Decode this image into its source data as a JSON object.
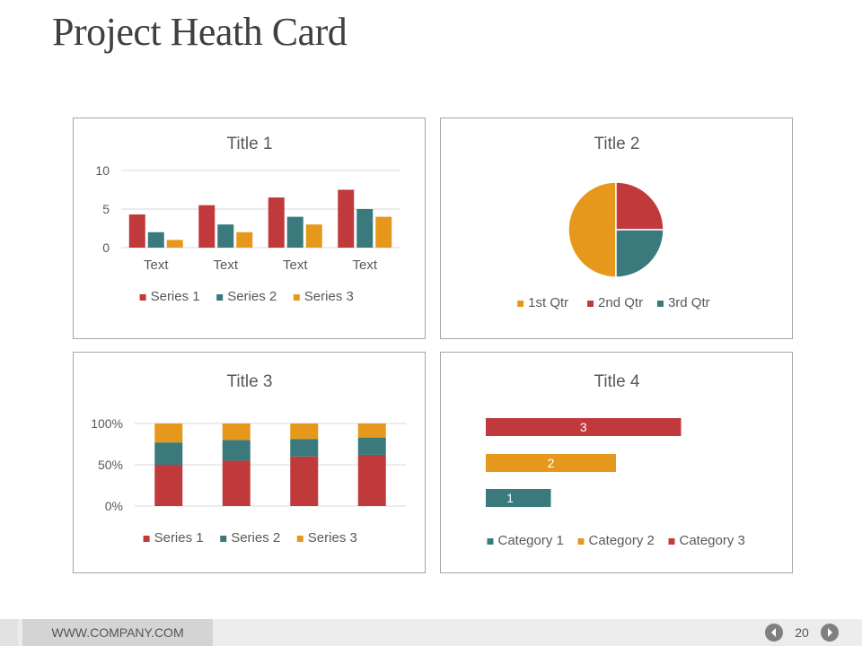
{
  "slide": {
    "title": "Project Heath Card",
    "footer_url": "WWW.COMPANY.COM",
    "page_number": "20"
  },
  "colors": {
    "red": "#C0393B",
    "teal": "#3A7A7D",
    "orange": "#E6981D",
    "grid": "#d9d9d9",
    "text": "#595959"
  },
  "icons": {
    "prev": "chevron-left-circle-icon",
    "next": "chevron-right-circle-icon"
  },
  "chart_data": [
    {
      "type": "bar",
      "title": "Title 1",
      "categories": [
        "Text",
        "Text",
        "Text",
        "Text"
      ],
      "series": [
        {
          "name": "Series 1",
          "values": [
            4.3,
            5.5,
            6.5,
            7.5
          ]
        },
        {
          "name": "Series 2",
          "values": [
            2,
            3,
            4,
            5
          ]
        },
        {
          "name": "Series 3",
          "values": [
            1,
            2,
            3,
            4
          ]
        }
      ],
      "ylim": [
        0,
        10
      ],
      "yticks": [
        "0",
        "5",
        "10"
      ],
      "grid": true,
      "legend": "bottom"
    },
    {
      "type": "pie",
      "title": "Title 2",
      "labels": [
        "1st Qtr",
        "2nd Qtr",
        "3rd Qtr"
      ],
      "values": [
        50,
        25,
        25
      ],
      "legend": "bottom"
    },
    {
      "type": "bar",
      "stacked": "percent",
      "title": "Title 3",
      "categories": [
        "",
        "",
        "",
        ""
      ],
      "series": [
        {
          "name": "Series 1",
          "values": [
            50,
            55,
            60,
            62
          ]
        },
        {
          "name": "Series 2",
          "values": [
            27,
            25,
            21,
            21
          ]
        },
        {
          "name": "Series 3",
          "values": [
            23,
            20,
            19,
            17
          ]
        }
      ],
      "ylim": [
        0,
        100
      ],
      "yticks": [
        "0%",
        "50%",
        "100%"
      ],
      "grid": true,
      "legend": "bottom"
    },
    {
      "type": "bar",
      "orientation": "horizontal",
      "title": "Title 4",
      "categories": [
        "Category 1",
        "Category 2",
        "Category 3"
      ],
      "values": [
        1,
        2,
        3
      ],
      "data_labels": [
        "1",
        "2",
        "3"
      ],
      "legend": "bottom"
    }
  ]
}
